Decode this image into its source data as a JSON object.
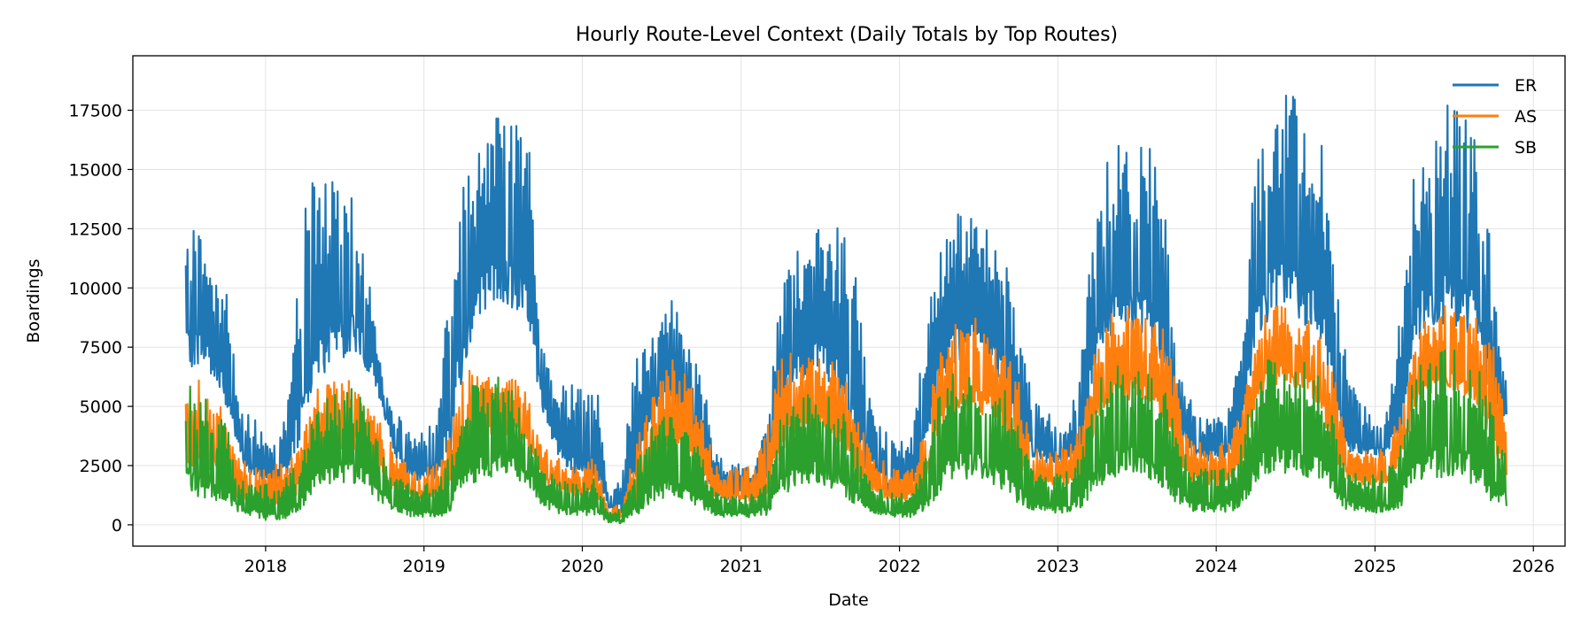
{
  "chart_data": {
    "type": "line",
    "title": "Hourly Route-Level Context (Daily Totals by Top Routes)",
    "xlabel": "Date",
    "ylabel": "Boardings",
    "x_axis": "date",
    "xlim": [
      "2017-03-01",
      "2026-03-15"
    ],
    "ylim": [
      -900,
      19800
    ],
    "x_ticks": [
      "2018",
      "2019",
      "2020",
      "2021",
      "2022",
      "2023",
      "2024",
      "2025",
      "2026"
    ],
    "y_ticks": [
      0,
      2500,
      5000,
      7500,
      10000,
      12500,
      15000,
      17500
    ],
    "y_tick_labels": [
      "0",
      "2500",
      "5000",
      "7500",
      "10000",
      "12500",
      "15000",
      "17500"
    ],
    "grid": true,
    "legend_position": "top-right",
    "series": [
      {
        "name": "ER",
        "color": "#1f77b4",
        "x": [
          "2017-07-01",
          "2017-08-01",
          "2017-09-01",
          "2017-10-01",
          "2017-11-01",
          "2017-12-01",
          "2018-01-01",
          "2018-02-01",
          "2018-03-01",
          "2018-04-01",
          "2018-05-01",
          "2018-06-01",
          "2018-07-01",
          "2018-08-01",
          "2018-09-01",
          "2018-10-01",
          "2018-11-01",
          "2018-12-01",
          "2019-01-01",
          "2019-02-01",
          "2019-03-01",
          "2019-04-01",
          "2019-05-01",
          "2019-06-01",
          "2019-07-01",
          "2019-08-01",
          "2019-09-01",
          "2019-10-01",
          "2019-11-01",
          "2019-12-01",
          "2020-01-01",
          "2020-02-01",
          "2020-03-01",
          "2020-04-01",
          "2020-05-01",
          "2020-06-01",
          "2020-07-01",
          "2020-08-01",
          "2020-09-01",
          "2020-10-01",
          "2020-11-01",
          "2020-12-01",
          "2021-01-01",
          "2021-02-01",
          "2021-03-01",
          "2021-04-01",
          "2021-05-01",
          "2021-06-01",
          "2021-07-01",
          "2021-08-01",
          "2021-09-01",
          "2021-10-01",
          "2021-11-01",
          "2021-12-01",
          "2022-01-01",
          "2022-02-01",
          "2022-03-01",
          "2022-04-01",
          "2022-05-01",
          "2022-06-01",
          "2022-07-01",
          "2022-08-01",
          "2022-09-01",
          "2022-10-01",
          "2022-11-01",
          "2022-12-01",
          "2023-01-01",
          "2023-02-01",
          "2023-03-01",
          "2023-04-01",
          "2023-05-01",
          "2023-06-01",
          "2023-07-01",
          "2023-08-01",
          "2023-09-01",
          "2023-10-01",
          "2023-11-01",
          "2023-12-01",
          "2024-01-01",
          "2024-02-01",
          "2024-03-01",
          "2024-04-01",
          "2024-05-01",
          "2024-06-01",
          "2024-07-01",
          "2024-08-01",
          "2024-09-01",
          "2024-10-01",
          "2024-11-01",
          "2024-12-01",
          "2025-01-01",
          "2025-02-01",
          "2025-03-01",
          "2025-04-01",
          "2025-05-01",
          "2025-06-01",
          "2025-07-01",
          "2025-08-01",
          "2025-09-01",
          "2025-10-01",
          "2025-11-01"
        ],
        "low": [
          6500,
          6800,
          6200,
          5000,
          3000,
          1800,
          1800,
          1800,
          2000,
          4500,
          6000,
          6800,
          7000,
          7200,
          6200,
          4600,
          2600,
          1800,
          1800,
          2000,
          2600,
          6500,
          8500,
          9000,
          9200,
          9000,
          8200,
          4600,
          3000,
          1900,
          1900,
          2100,
          700,
          400,
          1800,
          3800,
          4800,
          5000,
          3800,
          2200,
          1200,
          1000,
          1200,
          1100,
          1500,
          4200,
          5500,
          6000,
          6200,
          5600,
          4300,
          2400,
          1900,
          1400,
          1400,
          1700,
          2400,
          5500,
          6800,
          7000,
          7000,
          6600,
          5400,
          3300,
          2800,
          2600,
          2600,
          2700,
          3000,
          7000,
          7800,
          7900,
          7800,
          7600,
          6500,
          4000,
          3000,
          2700,
          2700,
          2900,
          3500,
          7500,
          8600,
          8900,
          8600,
          8300,
          7400,
          4300,
          3000,
          2800,
          2800,
          3000,
          3800,
          7500,
          8200,
          8400,
          8400,
          8000,
          7200,
          4200,
          4500
        ],
        "high": [
          13000,
          12900,
          11000,
          10900,
          4800,
          4700,
          3800,
          3900,
          6800,
          14300,
          14600,
          14600,
          14500,
          14100,
          10100,
          5800,
          4900,
          4300,
          4200,
          4400,
          11300,
          15000,
          16000,
          17300,
          18100,
          17300,
          16000,
          7600,
          5800,
          5900,
          5900,
          6400,
          1000,
          2500,
          6800,
          8300,
          9300,
          9800,
          7900,
          6600,
          3100,
          2500,
          2600,
          2600,
          4300,
          10100,
          11500,
          11800,
          12800,
          12200,
          13300,
          9300,
          5300,
          4000,
          3600,
          3900,
          8600,
          11700,
          13500,
          13000,
          13200,
          12800,
          11400,
          8900,
          6000,
          5000,
          4300,
          4500,
          9200,
          14400,
          15600,
          16300,
          16200,
          15900,
          14300,
          7200,
          5600,
          4500,
          4600,
          5300,
          8600,
          16300,
          17300,
          18900,
          18000,
          17000,
          16200,
          11000,
          6200,
          5200,
          4600,
          4900,
          9200,
          15500,
          16500,
          17800,
          18200,
          17600,
          15600,
          11000,
          5700
        ]
      },
      {
        "name": "AS",
        "color": "#ff7f0e",
        "x": [
          "2017-07-01",
          "2017-08-01",
          "2017-09-01",
          "2017-10-01",
          "2017-11-01",
          "2017-12-01",
          "2018-01-01",
          "2018-02-01",
          "2018-03-01",
          "2018-04-01",
          "2018-05-01",
          "2018-06-01",
          "2018-07-01",
          "2018-08-01",
          "2018-09-01",
          "2018-10-01",
          "2018-11-01",
          "2018-12-01",
          "2019-01-01",
          "2019-02-01",
          "2019-03-01",
          "2019-04-01",
          "2019-05-01",
          "2019-06-01",
          "2019-07-01",
          "2019-08-01",
          "2019-09-01",
          "2019-10-01",
          "2019-11-01",
          "2019-12-01",
          "2020-01-01",
          "2020-02-01",
          "2020-03-01",
          "2020-04-01",
          "2020-05-01",
          "2020-06-01",
          "2020-07-01",
          "2020-08-01",
          "2020-09-01",
          "2020-10-01",
          "2020-11-01",
          "2020-12-01",
          "2021-01-01",
          "2021-02-01",
          "2021-03-01",
          "2021-04-01",
          "2021-05-01",
          "2021-06-01",
          "2021-07-01",
          "2021-08-01",
          "2021-09-01",
          "2021-10-01",
          "2021-11-01",
          "2021-12-01",
          "2022-01-01",
          "2022-02-01",
          "2022-03-01",
          "2022-04-01",
          "2022-05-01",
          "2022-06-01",
          "2022-07-01",
          "2022-08-01",
          "2022-09-01",
          "2022-10-01",
          "2022-11-01",
          "2022-12-01",
          "2023-01-01",
          "2023-02-01",
          "2023-03-01",
          "2023-04-01",
          "2023-05-01",
          "2023-06-01",
          "2023-07-01",
          "2023-08-01",
          "2023-09-01",
          "2023-10-01",
          "2023-11-01",
          "2023-12-01",
          "2024-01-01",
          "2024-02-01",
          "2024-03-01",
          "2024-04-01",
          "2024-05-01",
          "2024-06-01",
          "2024-07-01",
          "2024-08-01",
          "2024-09-01",
          "2024-10-01",
          "2024-11-01",
          "2024-12-01",
          "2025-01-01",
          "2025-02-01",
          "2025-03-01",
          "2025-04-01",
          "2025-05-01",
          "2025-06-01",
          "2025-07-01",
          "2025-08-01",
          "2025-09-01",
          "2025-10-01",
          "2025-11-01"
        ],
        "low": [
          2500,
          2400,
          2200,
          1800,
          1000,
          900,
          800,
          800,
          900,
          1800,
          2800,
          3000,
          3200,
          3100,
          2600,
          1800,
          1300,
          1100,
          1100,
          1100,
          1300,
          2600,
          3300,
          3600,
          3800,
          3600,
          3000,
          1900,
          1400,
          1200,
          1200,
          1200,
          300,
          200,
          700,
          1800,
          2400,
          2800,
          2500,
          1900,
          1100,
          900,
          900,
          900,
          1100,
          2800,
          3600,
          3900,
          3800,
          3500,
          2800,
          1700,
          1400,
          1100,
          1000,
          1100,
          1600,
          3600,
          4500,
          4800,
          4700,
          4400,
          3800,
          2300,
          1600,
          1600,
          1600,
          1700,
          2000,
          4300,
          5000,
          5300,
          5200,
          5000,
          4200,
          2600,
          1800,
          1700,
          1600,
          1800,
          2300,
          5000,
          5800,
          6000,
          5800,
          5600,
          4700,
          2700,
          1900,
          1700,
          1700,
          1800,
          2300,
          4800,
          5500,
          5700,
          5600,
          5300,
          4700,
          2900,
          2000
        ],
        "high": [
          6000,
          6100,
          5100,
          5000,
          2900,
          2600,
          2500,
          2600,
          3000,
          4000,
          5800,
          6000,
          6200,
          6100,
          5200,
          3900,
          3200,
          2600,
          2500,
          2600,
          3800,
          6900,
          6600,
          6400,
          6300,
          6200,
          5400,
          3500,
          2900,
          2500,
          2500,
          3000,
          600,
          1000,
          3600,
          5000,
          6300,
          7300,
          6500,
          4900,
          2600,
          2400,
          2400,
          2500,
          4000,
          7200,
          7300,
          7400,
          7400,
          7000,
          6100,
          4200,
          3100,
          2600,
          2300,
          2500,
          4100,
          7400,
          8500,
          8800,
          8700,
          8500,
          7700,
          6200,
          3400,
          3300,
          3200,
          3400,
          4500,
          8000,
          9000,
          9300,
          9200,
          8800,
          8300,
          6200,
          3700,
          3500,
          3400,
          3600,
          5200,
          8500,
          9400,
          9300,
          9000,
          8600,
          7800,
          6200,
          3400,
          3200,
          3200,
          3500,
          5200,
          8000,
          8700,
          9400,
          9200,
          9000,
          8600,
          7500,
          4800
        ]
      },
      {
        "name": "SB",
        "color": "#2ca02c",
        "x": [
          "2017-07-01",
          "2017-08-01",
          "2017-09-01",
          "2017-10-01",
          "2017-11-01",
          "2017-12-01",
          "2018-01-01",
          "2018-02-01",
          "2018-03-01",
          "2018-04-01",
          "2018-05-01",
          "2018-06-01",
          "2018-07-01",
          "2018-08-01",
          "2018-09-01",
          "2018-10-01",
          "2018-11-01",
          "2018-12-01",
          "2019-01-01",
          "2019-02-01",
          "2019-03-01",
          "2019-04-01",
          "2019-05-01",
          "2019-06-01",
          "2019-07-01",
          "2019-08-01",
          "2019-09-01",
          "2019-10-01",
          "2019-11-01",
          "2019-12-01",
          "2020-01-01",
          "2020-02-01",
          "2020-03-01",
          "2020-04-01",
          "2020-05-01",
          "2020-06-01",
          "2020-07-01",
          "2020-08-01",
          "2020-09-01",
          "2020-10-01",
          "2020-11-01",
          "2020-12-01",
          "2021-01-01",
          "2021-02-01",
          "2021-03-01",
          "2021-04-01",
          "2021-05-01",
          "2021-06-01",
          "2021-07-01",
          "2021-08-01",
          "2021-09-01",
          "2021-10-01",
          "2021-11-01",
          "2021-12-01",
          "2022-01-01",
          "2022-02-01",
          "2022-03-01",
          "2022-04-01",
          "2022-05-01",
          "2022-06-01",
          "2022-07-01",
          "2022-08-01",
          "2022-09-01",
          "2022-10-01",
          "2022-11-01",
          "2022-12-01",
          "2023-01-01",
          "2023-02-01",
          "2023-03-01",
          "2023-04-01",
          "2023-05-01",
          "2023-06-01",
          "2023-07-01",
          "2023-08-01",
          "2023-09-01",
          "2023-10-01",
          "2023-11-01",
          "2023-12-01",
          "2024-01-01",
          "2024-02-01",
          "2024-03-01",
          "2024-04-01",
          "2024-05-01",
          "2024-06-01",
          "2024-07-01",
          "2024-08-01",
          "2024-09-01",
          "2024-10-01",
          "2024-11-01",
          "2024-12-01",
          "2025-01-01",
          "2025-02-01",
          "2025-03-01",
          "2025-04-01",
          "2025-05-01",
          "2025-06-01",
          "2025-07-01",
          "2025-08-01",
          "2025-09-01",
          "2025-10-01",
          "2025-11-01"
        ],
        "low": [
          1200,
          1100,
          1000,
          900,
          500,
          300,
          200,
          200,
          300,
          800,
          1500,
          1700,
          1800,
          1700,
          1300,
          800,
          400,
          300,
          300,
          300,
          500,
          1200,
          1800,
          2000,
          2100,
          1900,
          1500,
          800,
          500,
          400,
          400,
          400,
          100,
          50,
          300,
          800,
          1100,
          1200,
          1000,
          700,
          400,
          300,
          300,
          300,
          400,
          1100,
          1500,
          1700,
          1700,
          1500,
          1100,
          700,
          500,
          400,
          300,
          300,
          500,
          1300,
          1800,
          1900,
          1900,
          1700,
          1400,
          800,
          600,
          500,
          500,
          500,
          700,
          1500,
          2000,
          2100,
          2100,
          1900,
          1500,
          900,
          600,
          500,
          500,
          500,
          800,
          1700,
          2100,
          2200,
          2100,
          1900,
          1600,
          900,
          600,
          500,
          500,
          500,
          700,
          1500,
          1900,
          2000,
          2000,
          1800,
          1500,
          900,
          700
        ],
        "high": [
          6000,
          5800,
          4800,
          4500,
          2100,
          1800,
          1700,
          1800,
          2200,
          3500,
          5000,
          5600,
          5800,
          5700,
          4300,
          2800,
          2000,
          1700,
          1700,
          1800,
          3000,
          5600,
          6000,
          6200,
          6300,
          5900,
          4600,
          2500,
          2000,
          1800,
          1800,
          2000,
          500,
          800,
          2700,
          4000,
          4800,
          5200,
          4300,
          3000,
          1400,
          1200,
          1200,
          1300,
          2200,
          4500,
          5400,
          5600,
          5700,
          5400,
          4600,
          3000,
          1700,
          1400,
          1300,
          1400,
          3000,
          5600,
          6400,
          6600,
          6600,
          6400,
          5700,
          4400,
          2300,
          2200,
          2200,
          2300,
          3600,
          6000,
          6800,
          7000,
          6900,
          6700,
          6100,
          4200,
          2500,
          2400,
          2300,
          2500,
          3600,
          6500,
          7100,
          7300,
          7200,
          6900,
          6300,
          4400,
          2400,
          2200,
          2200,
          2400,
          3500,
          6500,
          7200,
          7500,
          7500,
          7200,
          6500,
          5000,
          3500
        ]
      }
    ]
  }
}
